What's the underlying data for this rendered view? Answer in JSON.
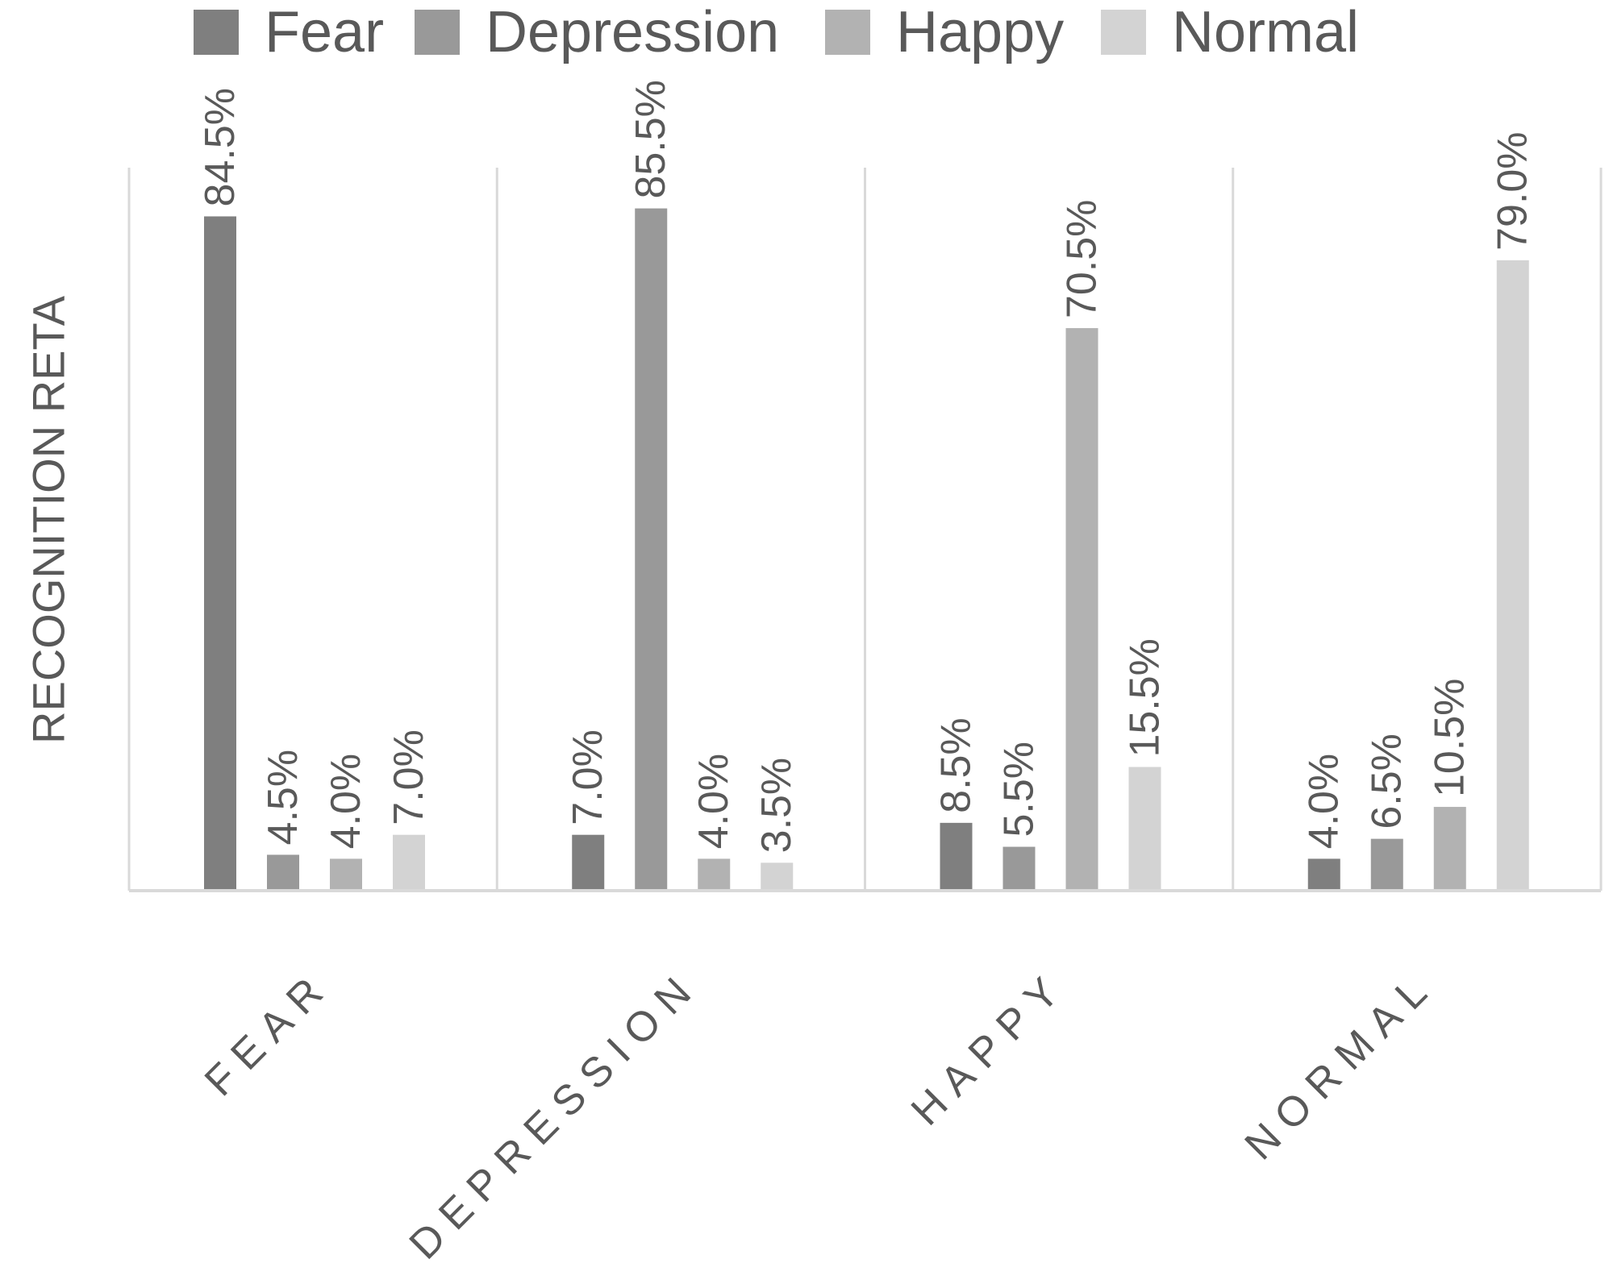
{
  "chart_data": {
    "type": "bar",
    "title": "",
    "xlabel": "",
    "ylabel": "RECOGNITION RETA",
    "categories": [
      "FEAR",
      "DEPRESSION",
      "HAPPY",
      "NORMAL"
    ],
    "series": [
      {
        "name": "Fear",
        "color": "#7f7f7f",
        "values": [
          84.5,
          7.0,
          8.5,
          4.0
        ],
        "labels": [
          "84.5%",
          "7.0%",
          "8.5%",
          "4.0%"
        ]
      },
      {
        "name": "Depression",
        "color": "#999999",
        "values": [
          4.5,
          85.5,
          5.5,
          6.5
        ],
        "labels": [
          "4.5%",
          "85.5%",
          "5.5%",
          "6.5%"
        ]
      },
      {
        "name": "Happy",
        "color": "#b2b2b2",
        "values": [
          4.0,
          4.0,
          70.5,
          10.5
        ],
        "labels": [
          "4.0%",
          "4.0%",
          "70.5%",
          "10.5%"
        ]
      },
      {
        "name": "Normal",
        "color": "#d3d3d3",
        "values": [
          7.0,
          3.5,
          15.5,
          79.0
        ],
        "labels": [
          "7.0%",
          "3.5%",
          "15.5%",
          "79.0%"
        ]
      }
    ],
    "ylim": [
      0,
      100
    ],
    "grid": "vertical category separators",
    "legend_position": "top",
    "colors": {
      "axis": "#d9d9d9",
      "text": "#595959"
    }
  }
}
